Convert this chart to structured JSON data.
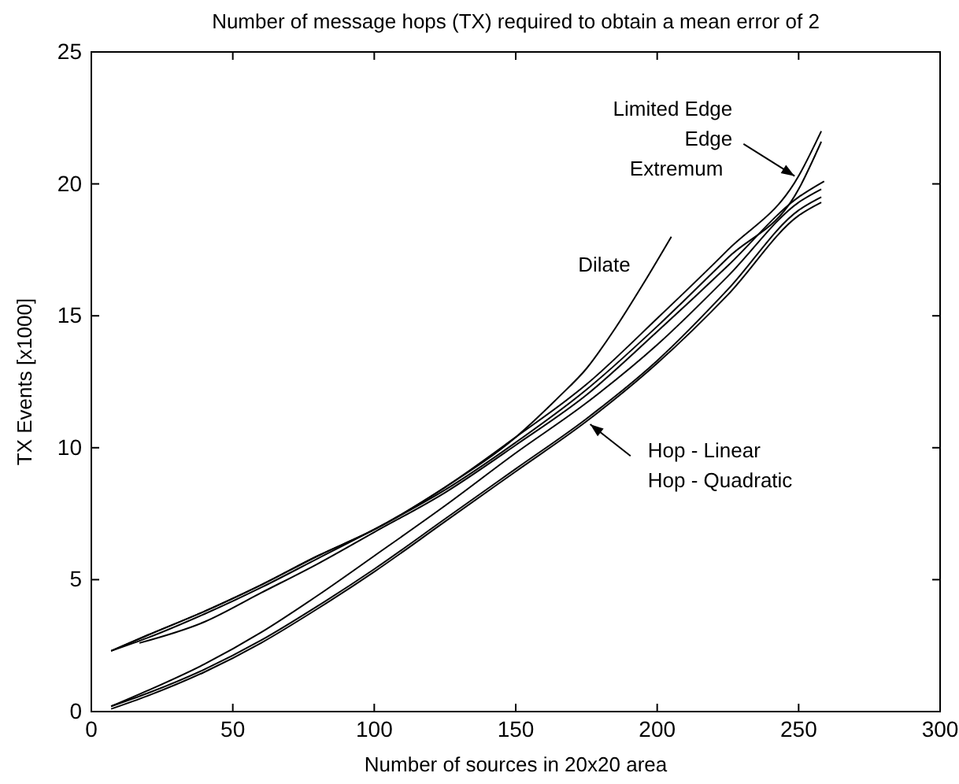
{
  "chart_data": {
    "type": "line",
    "title": "Number of message hops (TX) required to obtain a mean error of 2",
    "xlabel": "Number of sources in 20x20 area",
    "ylabel": "TX Events [x1000]",
    "xlim": [
      0,
      300
    ],
    "xticks": [
      0,
      50,
      100,
      150,
      200,
      250,
      300
    ],
    "ylim": [
      0,
      25
    ],
    "yticks": [
      0,
      5,
      10,
      15,
      20,
      25
    ],
    "grid": false,
    "marker": "none",
    "line_style": "solid",
    "series": [
      {
        "color": "#000000",
        "x": [
          7,
          20,
          40,
          60,
          80,
          100,
          125,
          150,
          175,
          200,
          225,
          250,
          258
        ],
        "values": [
          2.3,
          2.9,
          3.8,
          4.8,
          5.9,
          6.9,
          8.5,
          10.4,
          12.4,
          14.9,
          17.5,
          20.3,
          22.0
        ]
      },
      {
        "color": "#000000",
        "x": [
          7,
          20,
          40,
          60,
          80,
          100,
          125,
          150,
          175,
          200,
          225,
          250,
          258
        ],
        "values": [
          2.3,
          2.8,
          3.7,
          4.7,
          5.8,
          6.9,
          8.4,
          10.2,
          12.2,
          14.6,
          17.2,
          19.8,
          21.6
        ]
      },
      {
        "color": "#000000",
        "x": [
          17,
          40,
          60,
          80,
          100,
          125,
          150,
          175,
          200,
          225,
          250,
          259
        ],
        "values": [
          2.6,
          3.4,
          4.5,
          5.6,
          6.8,
          8.3,
          10.1,
          12.0,
          14.4,
          16.9,
          19.5,
          20.1
        ]
      },
      {
        "name": "Dilate",
        "color": "#000000",
        "x": [
          7,
          20,
          40,
          60,
          80,
          100,
          125,
          150,
          165,
          175,
          185,
          195,
          205
        ],
        "values": [
          2.3,
          2.9,
          3.8,
          4.8,
          5.9,
          6.9,
          8.5,
          10.4,
          11.9,
          13.0,
          14.5,
          16.2,
          18.0
        ]
      },
      {
        "color": "#000000",
        "x": [
          7,
          20,
          40,
          60,
          80,
          100,
          125,
          150,
          175,
          200,
          225,
          250,
          258
        ],
        "values": [
          0.2,
          0.8,
          1.8,
          3.0,
          4.4,
          5.9,
          7.8,
          9.8,
          11.7,
          13.9,
          16.5,
          19.3,
          19.8
        ]
      },
      {
        "color": "#000000",
        "x": [
          7,
          20,
          40,
          60,
          80,
          100,
          125,
          150,
          175,
          200,
          225,
          250,
          258
        ],
        "values": [
          0.2,
          0.7,
          1.6,
          2.7,
          4.0,
          5.4,
          7.3,
          9.2,
          11.1,
          13.3,
          16.0,
          19.0,
          19.5
        ]
      },
      {
        "color": "#000000",
        "x": [
          7,
          20,
          40,
          60,
          80,
          100,
          125,
          150,
          175,
          200,
          225,
          250,
          258
        ],
        "values": [
          0.1,
          0.6,
          1.5,
          2.6,
          3.9,
          5.3,
          7.2,
          9.1,
          11.0,
          13.2,
          15.8,
          18.8,
          19.3
        ]
      }
    ],
    "annotations": [
      "Limited Edge",
      {
        "text": "Edge",
        "x": 250,
        "y": 20.2
      },
      "Extremum",
      {
        "text": "Hop - Linear",
        "x": 175,
        "y": 11.0
      },
      "Hop - Quadratic"
    ]
  }
}
